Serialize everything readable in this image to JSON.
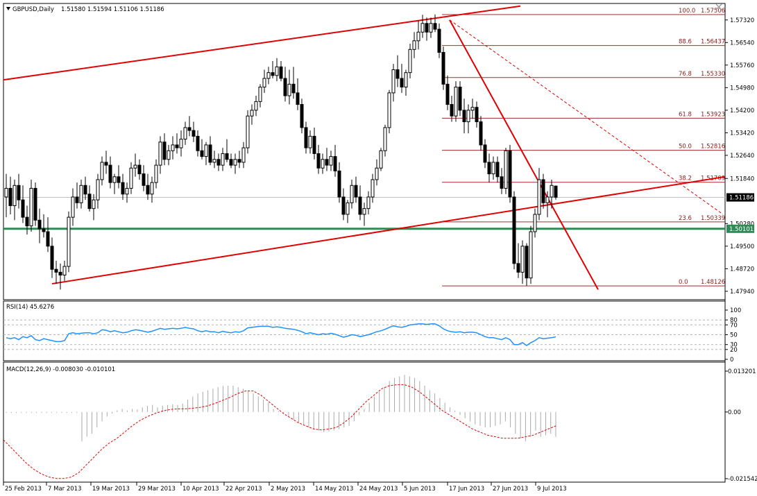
{
  "header": {
    "symbol": "GBPUSD,Daily",
    "ohlc": "1.51580 1.51594 1.51106 1.51186"
  },
  "chart_data": [
    {
      "type": "candlestick",
      "title": "GBPUSD,Daily",
      "ylim": [
        1.4765,
        1.5789
      ],
      "y_ticks": [
        "1.57320",
        "1.56540",
        "1.55760",
        "1.54980",
        "1.54200",
        "1.53420",
        "1.52640",
        "1.51840",
        "1.51186",
        "1.50280",
        "1.50101",
        "1.49500",
        "1.48720",
        "1.47940"
      ],
      "x_ticks": [
        "25 Feb 2013",
        "7 Mar 2013",
        "19 Mar 2013",
        "29 Mar 2013",
        "10 Apr 2013",
        "22 Apr 2013",
        "2 May 2013",
        "14 May 2013",
        "24 May 2013",
        "5 Jun 2013",
        "17 Jun 2013",
        "27 Jun 2013",
        "9 Jul 2013"
      ],
      "current_price": "1.51186",
      "support_level": "1.50101",
      "fibonacci": [
        {
          "level": "100.0",
          "price": "1.57506"
        },
        {
          "level": "88.6",
          "price": "1.56437"
        },
        {
          "level": "76.8",
          "price": "1.55330"
        },
        {
          "level": "61.8",
          "price": "1.53923"
        },
        {
          "level": "50.0",
          "price": "1.52816"
        },
        {
          "level": "38.2",
          "price": "1.51709"
        },
        {
          "level": "23.6",
          "price": "1.50339"
        },
        {
          "level": "0.0",
          "price": "1.48126"
        }
      ],
      "candles": [
        [
          1.512,
          1.52,
          1.505,
          1.515
        ],
        [
          1.515,
          1.519,
          1.506,
          1.509
        ],
        [
          1.509,
          1.518,
          1.504,
          1.516
        ],
        [
          1.516,
          1.52,
          1.508,
          1.511
        ],
        [
          1.511,
          1.516,
          1.503,
          1.505
        ],
        [
          1.505,
          1.509,
          1.499,
          1.502
        ],
        [
          1.502,
          1.518,
          1.5,
          1.515
        ],
        [
          1.515,
          1.517,
          1.502,
          1.504
        ],
        [
          1.504,
          1.508,
          1.496,
          1.501
        ],
        [
          1.501,
          1.506,
          1.498,
          1.5
        ],
        [
          1.5,
          1.505,
          1.493,
          1.495
        ],
        [
          1.495,
          1.498,
          1.484,
          1.487
        ],
        [
          1.487,
          1.49,
          1.482,
          1.486
        ],
        [
          1.486,
          1.489,
          1.48,
          1.485
        ],
        [
          1.485,
          1.49,
          1.483,
          1.488
        ],
        [
          1.488,
          1.507,
          1.486,
          1.505
        ],
        [
          1.505,
          1.515,
          1.502,
          1.512
        ],
        [
          1.512,
          1.517,
          1.508,
          1.51
        ],
        [
          1.51,
          1.518,
          1.508,
          1.516
        ],
        [
          1.516,
          1.519,
          1.511,
          1.513
        ],
        [
          1.513,
          1.516,
          1.507,
          1.508
        ],
        [
          1.508,
          1.513,
          1.504,
          1.511
        ],
        [
          1.511,
          1.52,
          1.508,
          1.518
        ],
        [
          1.518,
          1.526,
          1.516,
          1.524
        ],
        [
          1.524,
          1.528,
          1.52,
          1.523
        ],
        [
          1.523,
          1.526,
          1.515,
          1.517
        ],
        [
          1.517,
          1.52,
          1.513,
          1.519
        ],
        [
          1.519,
          1.523,
          1.515,
          1.517
        ],
        [
          1.517,
          1.52,
          1.511,
          1.513
        ],
        [
          1.513,
          1.517,
          1.51,
          1.515
        ],
        [
          1.515,
          1.524,
          1.513,
          1.522
        ],
        [
          1.522,
          1.527,
          1.519,
          1.523
        ],
        [
          1.523,
          1.525,
          1.518,
          1.52
        ],
        [
          1.52,
          1.523,
          1.514,
          1.516
        ],
        [
          1.516,
          1.52,
          1.511,
          1.513
        ],
        [
          1.513,
          1.519,
          1.51,
          1.517
        ],
        [
          1.517,
          1.525,
          1.515,
          1.523
        ],
        [
          1.523,
          1.533,
          1.52,
          1.531
        ],
        [
          1.531,
          1.534,
          1.523,
          1.525
        ],
        [
          1.525,
          1.53,
          1.523,
          1.528
        ],
        [
          1.528,
          1.533,
          1.525,
          1.53
        ],
        [
          1.53,
          1.534,
          1.527,
          1.529
        ],
        [
          1.529,
          1.535,
          1.526,
          1.532
        ],
        [
          1.532,
          1.538,
          1.53,
          1.536
        ],
        [
          1.536,
          1.54,
          1.533,
          1.535
        ],
        [
          1.535,
          1.538,
          1.531,
          1.533
        ],
        [
          1.533,
          1.535,
          1.526,
          1.528
        ],
        [
          1.528,
          1.532,
          1.525,
          1.526
        ],
        [
          1.526,
          1.531,
          1.523,
          1.53
        ],
        [
          1.53,
          1.533,
          1.523,
          1.524
        ],
        [
          1.524,
          1.528,
          1.522,
          1.525
        ],
        [
          1.525,
          1.527,
          1.521,
          1.523
        ],
        [
          1.523,
          1.529,
          1.521,
          1.527
        ],
        [
          1.527,
          1.532,
          1.524,
          1.525
        ],
        [
          1.525,
          1.527,
          1.522,
          1.523
        ],
        [
          1.523,
          1.527,
          1.52,
          1.525
        ],
        [
          1.525,
          1.528,
          1.522,
          1.524
        ],
        [
          1.524,
          1.531,
          1.522,
          1.529
        ],
        [
          1.529,
          1.542,
          1.527,
          1.54
        ],
        [
          1.54,
          1.544,
          1.537,
          1.542
        ],
        [
          1.542,
          1.547,
          1.54,
          1.545
        ],
        [
          1.545,
          1.551,
          1.543,
          1.55
        ],
        [
          1.55,
          1.556,
          1.548,
          1.553
        ],
        [
          1.553,
          1.557,
          1.551,
          1.555
        ],
        [
          1.555,
          1.559,
          1.553,
          1.554
        ],
        [
          1.554,
          1.56,
          1.552,
          1.557
        ],
        [
          1.557,
          1.559,
          1.552,
          1.553
        ],
        [
          1.553,
          1.557,
          1.545,
          1.547
        ],
        [
          1.547,
          1.556,
          1.544,
          1.551
        ],
        [
          1.551,
          1.557,
          1.546,
          1.548
        ],
        [
          1.548,
          1.553,
          1.542,
          1.544
        ],
        [
          1.544,
          1.546,
          1.534,
          1.536
        ],
        [
          1.536,
          1.538,
          1.527,
          1.529
        ],
        [
          1.529,
          1.535,
          1.527,
          1.533
        ],
        [
          1.533,
          1.536,
          1.525,
          1.527
        ],
        [
          1.527,
          1.53,
          1.52,
          1.522
        ],
        [
          1.522,
          1.527,
          1.52,
          1.525
        ],
        [
          1.525,
          1.529,
          1.521,
          1.523
        ],
        [
          1.523,
          1.528,
          1.521,
          1.526
        ],
        [
          1.526,
          1.53,
          1.519,
          1.521
        ],
        [
          1.521,
          1.524,
          1.51,
          1.512
        ],
        [
          1.512,
          1.515,
          1.504,
          1.506
        ],
        [
          1.506,
          1.511,
          1.503,
          1.51
        ],
        [
          1.51,
          1.518,
          1.508,
          1.516
        ],
        [
          1.516,
          1.519,
          1.51,
          1.512
        ],
        [
          1.512,
          1.516,
          1.504,
          1.506
        ],
        [
          1.506,
          1.51,
          1.502,
          1.508
        ],
        [
          1.508,
          1.514,
          1.506,
          1.512
        ],
        [
          1.512,
          1.52,
          1.51,
          1.518
        ],
        [
          1.518,
          1.525,
          1.516,
          1.522
        ],
        [
          1.522,
          1.529,
          1.521,
          1.528
        ],
        [
          1.528,
          1.537,
          1.526,
          1.536
        ],
        [
          1.536,
          1.549,
          1.534,
          1.548
        ],
        [
          1.548,
          1.558,
          1.545,
          1.556
        ],
        [
          1.556,
          1.561,
          1.55,
          1.553
        ],
        [
          1.553,
          1.558,
          1.548,
          1.55
        ],
        [
          1.55,
          1.556,
          1.547,
          1.555
        ],
        [
          1.555,
          1.565,
          1.553,
          1.563
        ],
        [
          1.563,
          1.569,
          1.56,
          1.566
        ],
        [
          1.566,
          1.573,
          1.563,
          1.569
        ],
        [
          1.569,
          1.575,
          1.567,
          1.572
        ],
        [
          1.572,
          1.574,
          1.566,
          1.569
        ],
        [
          1.569,
          1.574,
          1.567,
          1.572
        ],
        [
          1.572,
          1.5751,
          1.569,
          1.57
        ],
        [
          1.57,
          1.572,
          1.56,
          1.562
        ],
        [
          1.562,
          1.564,
          1.549,
          1.551
        ],
        [
          1.551,
          1.554,
          1.542,
          1.544
        ],
        [
          1.544,
          1.547,
          1.538,
          1.54
        ],
        [
          1.54,
          1.552,
          1.538,
          1.55
        ],
        [
          1.55,
          1.552,
          1.54,
          1.542
        ],
        [
          1.542,
          1.546,
          1.534,
          1.538
        ],
        [
          1.538,
          1.544,
          1.534,
          1.542
        ],
        [
          1.542,
          1.546,
          1.539,
          1.543
        ],
        [
          1.543,
          1.545,
          1.536,
          1.538
        ],
        [
          1.538,
          1.54,
          1.528,
          1.53
        ],
        [
          1.53,
          1.532,
          1.522,
          1.524
        ],
        [
          1.524,
          1.527,
          1.517,
          1.52
        ],
        [
          1.52,
          1.526,
          1.518,
          1.524
        ],
        [
          1.524,
          1.526,
          1.517,
          1.519
        ],
        [
          1.519,
          1.522,
          1.513,
          1.515
        ],
        [
          1.515,
          1.529,
          1.513,
          1.528
        ],
        [
          1.528,
          1.53,
          1.51,
          1.512
        ],
        [
          1.512,
          1.514,
          1.487,
          1.489
        ],
        [
          1.489,
          1.496,
          1.484,
          1.486
        ],
        [
          1.486,
          1.497,
          1.482,
          1.495
        ],
        [
          1.495,
          1.496,
          1.4813,
          1.484
        ],
        [
          1.484,
          1.502,
          1.482,
          1.5
        ],
        [
          1.5,
          1.508,
          1.498,
          1.506
        ],
        [
          1.506,
          1.522,
          1.504,
          1.518
        ],
        [
          1.518,
          1.52,
          1.508,
          1.51
        ],
        [
          1.51,
          1.514,
          1.505,
          1.512
        ],
        [
          1.512,
          1.518,
          1.508,
          1.516
        ],
        [
          1.5158,
          1.5159,
          1.5111,
          1.5119
        ]
      ]
    },
    {
      "type": "line",
      "title": "RSI(14) 45.6276",
      "ylim": [
        0,
        100
      ],
      "y_ticks": [
        "100",
        "80",
        "70",
        "50",
        "30",
        "20",
        "0"
      ],
      "levels": [
        80,
        70,
        50,
        30,
        20
      ],
      "values": [
        44,
        42,
        44,
        40,
        46,
        44,
        48,
        40,
        38,
        42,
        40,
        38,
        36,
        36,
        38,
        52,
        54,
        52,
        53,
        54,
        54,
        52,
        54,
        60,
        59,
        56,
        58,
        56,
        54,
        55,
        58,
        60,
        59,
        57,
        55,
        57,
        60,
        63,
        61,
        62,
        63,
        62,
        63,
        65,
        63,
        62,
        58,
        56,
        58,
        56,
        56,
        54,
        57,
        55,
        54,
        56,
        55,
        58,
        64,
        65,
        66,
        67,
        67,
        67,
        65,
        66,
        65,
        63,
        62,
        61,
        59,
        56,
        52,
        54,
        52,
        50,
        52,
        51,
        53,
        51,
        48,
        45,
        47,
        50,
        49,
        46,
        48,
        50,
        53,
        56,
        58,
        61,
        65,
        68,
        66,
        65,
        67,
        70,
        71,
        72,
        72,
        71,
        72,
        72,
        68,
        62,
        58,
        56,
        55,
        56,
        54,
        55,
        55,
        54,
        50,
        46,
        44,
        44,
        42,
        40,
        44,
        40,
        30,
        30,
        34,
        28,
        34,
        38,
        44,
        42,
        43,
        44,
        45.6276
      ]
    },
    {
      "type": "bar",
      "title": "MACD(12,26,9) -0.008030 -0.010101",
      "ylim": [
        -0.02154,
        0.0132
      ],
      "y_ticks": [
        "0.013201",
        "0.00",
        "-0.021542"
      ],
      "series": [
        {
          "values": [
            -0.0003,
            -0.0003,
            -0.0003,
            -0.0003,
            -0.0003,
            -0.0003,
            -0.0003,
            -0.0003,
            -0.0003,
            -0.0003,
            -0.0003,
            -0.0003,
            -0.0003,
            -0.0003,
            -0.0003,
            -0.0095,
            -0.008,
            -0.007,
            -0.005,
            -0.003,
            -0.0015,
            -0.0005,
            0.0005,
            0.001,
            0.0005,
            0.001,
            0.0008,
            0.0015,
            0.002,
            0.0023,
            0.0015,
            0.002,
            0.0023,
            0.0025,
            0.0023,
            0.0027,
            0.004,
            0.005,
            0.006,
            0.0065,
            0.007,
            0.0075,
            0.008,
            0.0084,
            0.0085,
            0.0085,
            0.008,
            0.0075,
            0.007,
            0.006,
            0.005,
            0.004,
            0.003,
            0.001,
            0.0003,
            -0.0003,
            -0.0015,
            -0.0025,
            -0.0035,
            -0.004,
            -0.005,
            -0.0055,
            -0.006,
            -0.0065,
            -0.0063,
            -0.006,
            -0.0055,
            -0.005,
            -0.0045,
            -0.003,
            -0.001,
            0.001,
            0.003,
            0.005,
            0.0065,
            0.008,
            0.01,
            0.011,
            0.0115,
            0.012,
            0.0115,
            0.011,
            0.01,
            0.0085,
            0.007,
            0.006,
            0.0045,
            0.003,
            0.0015,
            0.0005,
            -0.001,
            -0.002,
            -0.003,
            -0.004,
            -0.0045,
            -0.005,
            -0.005,
            -0.0045,
            -0.004,
            -0.003,
            -0.005,
            -0.007,
            -0.0085,
            -0.0095,
            -0.008,
            -0.006,
            -0.008,
            -0.0075,
            -0.007,
            -0.008
          ]
        },
        {
          "values": [
            -0.009,
            -0.0115,
            -0.014,
            -0.0165,
            -0.0185,
            -0.02,
            -0.021,
            -0.0215,
            -0.0215,
            -0.021,
            -0.0195,
            -0.017,
            -0.0145,
            -0.012,
            -0.01,
            -0.0085,
            -0.0065,
            -0.0045,
            -0.0028,
            -0.0015,
            -0.0005,
            0.0003,
            0.0008,
            0.001,
            0.001,
            0.0012,
            0.0015,
            0.002,
            0.0028,
            0.0038,
            0.0048,
            0.006,
            0.0068,
            0.0068,
            0.0055,
            0.0035,
            0.0015,
            -0.0005,
            -0.002,
            -0.0035,
            -0.0045,
            -0.0055,
            -0.0058,
            -0.0055,
            -0.005,
            -0.0035,
            -0.0015,
            0.001,
            0.0035,
            0.0055,
            0.0075,
            0.0085,
            0.0088,
            0.0088,
            0.008,
            0.0065,
            0.0045,
            0.0025,
            0.0005,
            -0.001,
            -0.0025,
            -0.004,
            -0.0055,
            -0.0065,
            -0.0075,
            -0.008,
            -0.0085,
            -0.0085,
            -0.0085,
            -0.008,
            -0.0075,
            -0.0065,
            -0.0055,
            -0.0045
          ]
        }
      ]
    }
  ]
}
